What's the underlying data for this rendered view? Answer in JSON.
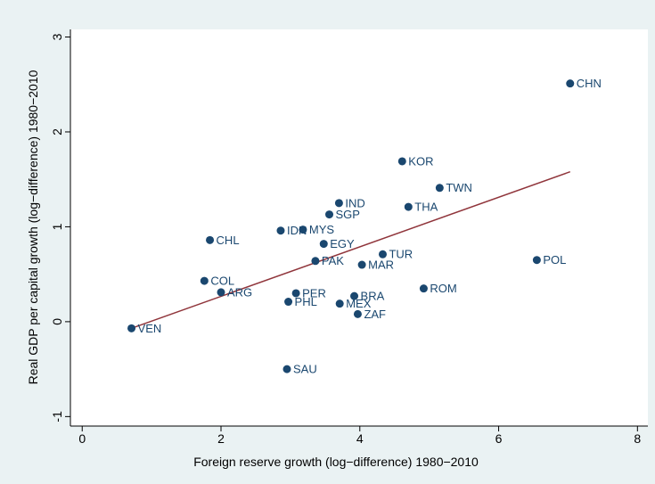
{
  "chart_data": {
    "type": "scatter",
    "x_label": "Foreign reserve growth (log−difference) 1980−2010",
    "y_label": "Real GDP per capital growth (log−difference) 1980−2010",
    "point_labels": [
      "CHN",
      "KOR",
      "TWN",
      "THA",
      "IND",
      "SGP",
      "IDN",
      "MYS",
      "CHL",
      "EGY",
      "TUR",
      "PAK",
      "MAR",
      "POL",
      "COL",
      "ARG",
      "PER",
      "ROM",
      "BRA",
      "PHL",
      "MEX",
      "ZAF",
      "VEN",
      "SAU"
    ],
    "x": [
      7.03,
      4.61,
      5.15,
      4.7,
      3.7,
      3.56,
      2.86,
      3.18,
      1.84,
      3.48,
      4.33,
      3.36,
      4.03,
      6.55,
      1.76,
      2.0,
      3.08,
      4.92,
      3.92,
      2.97,
      3.71,
      3.97,
      0.71,
      2.95
    ],
    "values": [
      2.51,
      1.69,
      1.41,
      1.21,
      1.25,
      1.13,
      0.96,
      0.97,
      0.86,
      0.82,
      0.71,
      0.64,
      0.6,
      0.65,
      0.43,
      0.31,
      0.3,
      0.35,
      0.27,
      0.21,
      0.19,
      0.08,
      -0.07,
      -0.5
    ],
    "color": "#1a476f",
    "fit_line": {
      "x": [
        0.71,
        7.03
      ],
      "values": [
        -0.07,
        1.58
      ],
      "color": "#90353b"
    },
    "xlim": [
      -0.17,
      8.15
    ],
    "ylim": [
      -1.1,
      3.08
    ],
    "xticks": [
      0,
      2,
      4,
      6,
      8
    ],
    "yticks": [
      -1,
      0,
      1,
      2,
      3
    ]
  }
}
